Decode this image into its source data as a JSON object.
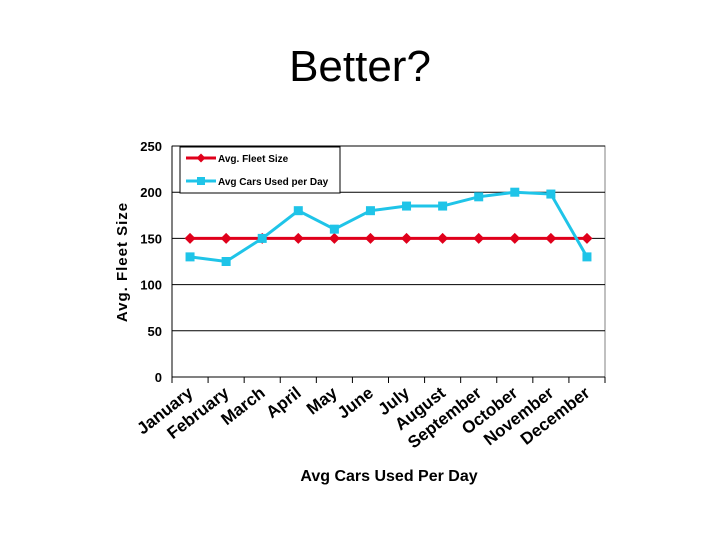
{
  "slide": {
    "title": "Better?"
  },
  "colors": {
    "fleet": "#e0001b",
    "cars": "#1fc4e8",
    "grid": "#000000",
    "plot_bg": "#ffffff"
  },
  "chart_data": {
    "type": "line",
    "title": "",
    "xlabel": "Avg Cars Used Per Day",
    "ylabel": "Avg. Fleet Size",
    "ylim": [
      0,
      250
    ],
    "yticks": [
      0,
      50,
      100,
      150,
      200,
      250
    ],
    "grid": true,
    "legend_position": "top-left",
    "categories": [
      "January",
      "February",
      "March",
      "April",
      "May",
      "June",
      "July",
      "August",
      "September",
      "October",
      "November",
      "December"
    ],
    "series": [
      {
        "name": "Avg. Fleet Size",
        "marker": "diamond",
        "values": [
          150,
          150,
          150,
          150,
          150,
          150,
          150,
          150,
          150,
          150,
          150,
          150
        ]
      },
      {
        "name": "Avg Cars Used per Day",
        "marker": "square",
        "values": [
          130,
          125,
          150,
          180,
          160,
          180,
          185,
          185,
          195,
          200,
          198,
          130
        ]
      }
    ]
  }
}
